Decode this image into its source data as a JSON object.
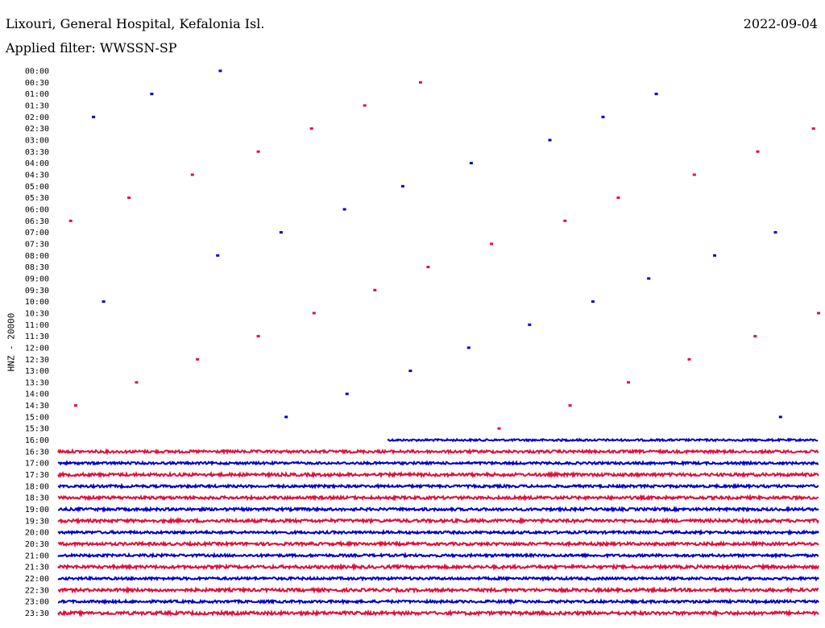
{
  "header": {
    "station": "Lixouri, General Hospital, Kefalonia Isl.",
    "filter": "Applied filter: WWSSN-SP",
    "date": "2022-09-04"
  },
  "chart_data": {
    "type": "line",
    "chart_kind": "helicorder",
    "ylabel": "HNZ - 20000",
    "colors": [
      "#0000cc",
      "#e0103c"
    ],
    "row_labels": [
      "00:00",
      "00:30",
      "01:00",
      "01:30",
      "02:00",
      "02:30",
      "03:00",
      "03:30",
      "04:00",
      "04:30",
      "05:00",
      "05:30",
      "06:00",
      "06:30",
      "07:00",
      "07:30",
      "08:00",
      "08:30",
      "09:00",
      "09:30",
      "10:00",
      "10:30",
      "11:00",
      "11:30",
      "12:00",
      "12:30",
      "13:00",
      "13:30",
      "14:00",
      "14:30",
      "15:00",
      "15:30",
      "16:00",
      "16:30",
      "17:00",
      "17:30",
      "18:00",
      "18:30",
      "19:00",
      "19:30",
      "20:00",
      "20:30",
      "21:00",
      "21:30",
      "22:00",
      "22:30",
      "23:00",
      "23:30"
    ],
    "minutes_per_row": 30,
    "data_start": "16:13",
    "trace_amplitude": [
      0.4,
      0.4,
      0.4,
      0.4,
      0.4,
      0.4,
      0.4,
      0.4,
      0.4,
      0.4,
      0.4,
      0.4,
      0.4,
      0.4,
      0.4,
      0.4,
      0.4,
      0.4,
      0.4,
      0.4,
      0.4,
      0.4,
      0.4,
      0.4,
      0.4,
      0.4,
      0.4,
      0.4,
      0.4,
      0.4,
      0.4,
      0.4,
      1.2,
      1.6,
      1.4,
      1.8,
      1.5,
      1.7,
      1.6,
      1.8,
      1.5,
      1.7,
      1.5,
      1.8,
      1.5,
      1.8,
      1.5,
      1.9
    ],
    "blips": [
      [
        {
          "min": 6.4
        }
      ],
      [
        {
          "min": 14.3
        }
      ],
      [
        {
          "min": 3.7
        },
        {
          "min": 23.6
        }
      ],
      [
        {
          "min": 12.1
        }
      ],
      [
        {
          "min": 1.4
        },
        {
          "min": 21.5
        }
      ],
      [
        {
          "min": 10.0
        },
        {
          "min": 29.8
        }
      ],
      [
        {
          "min": 19.4
        }
      ],
      [
        {
          "min": 7.9
        },
        {
          "min": 27.6
        }
      ],
      [
        {
          "min": 16.3
        }
      ],
      [
        {
          "min": 5.3
        },
        {
          "min": 25.1
        }
      ],
      [
        {
          "min": 13.6
        }
      ],
      [
        {
          "min": 2.8
        },
        {
          "min": 22.1
        }
      ],
      [
        {
          "min": 11.3
        }
      ],
      [
        {
          "min": 0.5
        },
        {
          "min": 20.0
        }
      ],
      [
        {
          "min": 8.8
        },
        {
          "min": 28.3
        }
      ],
      [
        {
          "min": 17.1
        }
      ],
      [
        {
          "min": 6.3
        },
        {
          "min": 25.9
        }
      ],
      [
        {
          "min": 14.6
        }
      ],
      [
        {
          "min": 23.3
        }
      ],
      [
        {
          "min": 12.5
        }
      ],
      [
        {
          "min": 1.8
        },
        {
          "min": 21.1
        }
      ],
      [
        {
          "min": 10.1
        },
        {
          "min": 30.0
        }
      ],
      [
        {
          "min": 18.6
        }
      ],
      [
        {
          "min": 7.9
        },
        {
          "min": 27.5
        }
      ],
      [
        {
          "min": 16.2
        }
      ],
      [
        {
          "min": 5.5
        },
        {
          "min": 24.9
        }
      ],
      [
        {
          "min": 13.9
        }
      ],
      [
        {
          "min": 3.1
        },
        {
          "min": 22.5
        }
      ],
      [
        {
          "min": 11.4
        }
      ],
      [
        {
          "min": 0.7
        },
        {
          "min": 20.2
        }
      ],
      [
        {
          "min": 9.0
        },
        {
          "min": 28.5
        }
      ],
      [
        {
          "min": 17.4
        }
      ],
      [],
      [],
      [],
      [],
      [],
      [],
      [],
      [],
      [],
      [],
      [],
      [],
      [],
      [],
      [],
      []
    ]
  }
}
